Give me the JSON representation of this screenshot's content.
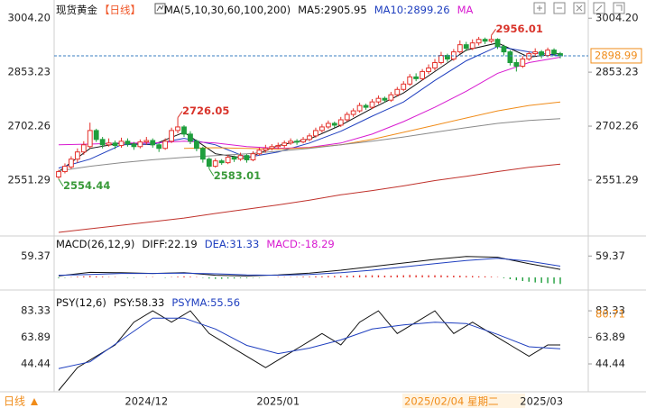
{
  "header": {
    "title": "现货黄金",
    "period": "【日线】",
    "indicator": "MA(5,10,30,60,100,200)",
    "legend": [
      "MA5:2905.95",
      "MA10:2899.26",
      "MA"
    ],
    "legend_colors": [
      "#111111",
      "#1f3fbf",
      "#d81bd0"
    ]
  },
  "chart_data": [
    {
      "type": "candlestick",
      "ylim": [
        2400,
        3040
      ],
      "yticks": [
        {
          "value": 3004.2,
          "label": "3004.20"
        },
        {
          "value": 2853.23,
          "label": "2853.23"
        },
        {
          "value": 2702.26,
          "label": "2702.26"
        },
        {
          "value": 2551.29,
          "label": "2551.29"
        }
      ],
      "up_color": "#e4312b",
      "down_color": "#1e9e3c",
      "price_line_color": "#3a7ec0",
      "crosshair_label": "2025/02/04 星期二",
      "categories": [
        null,
        null,
        null,
        null,
        null,
        null,
        null,
        null,
        null,
        null,
        null,
        null,
        null,
        null,
        "2024/12",
        null,
        null,
        null,
        null,
        null,
        null,
        null,
        null,
        null,
        null,
        null,
        null,
        null,
        null,
        null,
        null,
        null,
        null,
        null,
        null,
        "2025/01",
        null,
        null,
        null,
        null,
        null,
        null,
        null,
        null,
        null,
        null,
        null,
        null,
        null,
        null,
        null,
        null,
        null,
        null,
        null,
        null,
        null,
        null,
        null,
        null,
        null,
        null,
        null,
        null,
        null,
        null,
        null,
        null,
        null,
        null,
        null,
        null,
        null,
        null,
        null,
        null,
        null,
        "2025/03",
        null,
        null,
        null
      ],
      "candles": [
        [
          2560,
          2580,
          2554.44,
          2575
        ],
        [
          2575,
          2598,
          2570,
          2590
        ],
        [
          2588,
          2618,
          2582,
          2610
        ],
        [
          2610,
          2640,
          2600,
          2630
        ],
        [
          2630,
          2660,
          2622,
          2650
        ],
        [
          2645,
          2712,
          2640,
          2690
        ],
        [
          2690,
          2695,
          2658,
          2665
        ],
        [
          2665,
          2672,
          2640,
          2650
        ],
        [
          2650,
          2668,
          2645,
          2655
        ],
        [
          2655,
          2662,
          2638,
          2648
        ],
        [
          2648,
          2670,
          2642,
          2660
        ],
        [
          2660,
          2668,
          2645,
          2652
        ],
        [
          2652,
          2658,
          2636,
          2645
        ],
        [
          2645,
          2665,
          2640,
          2658
        ],
        [
          2658,
          2672,
          2650,
          2662
        ],
        [
          2662,
          2668,
          2642,
          2650
        ],
        [
          2650,
          2655,
          2630,
          2640
        ],
        [
          2640,
          2668,
          2636,
          2660
        ],
        [
          2660,
          2698,
          2655,
          2690
        ],
        [
          2690,
          2726.05,
          2682,
          2700
        ],
        [
          2700,
          2705,
          2672,
          2680
        ],
        [
          2680,
          2688,
          2652,
          2660
        ],
        [
          2660,
          2665,
          2632,
          2640
        ],
        [
          2640,
          2645,
          2600,
          2610
        ],
        [
          2610,
          2615,
          2583.01,
          2590
        ],
        [
          2590,
          2612,
          2586,
          2605
        ],
        [
          2605,
          2610,
          2594,
          2600
        ],
        [
          2600,
          2622,
          2596,
          2615
        ],
        [
          2615,
          2620,
          2602,
          2610
        ],
        [
          2610,
          2628,
          2605,
          2620
        ],
        [
          2620,
          2624,
          2600,
          2608
        ],
        [
          2608,
          2632,
          2604,
          2625
        ],
        [
          2625,
          2642,
          2620,
          2635
        ],
        [
          2635,
          2650,
          2628,
          2640
        ],
        [
          2640,
          2652,
          2634,
          2645
        ],
        [
          2645,
          2656,
          2638,
          2648
        ],
        [
          2648,
          2662,
          2642,
          2655
        ],
        [
          2655,
          2668,
          2650,
          2660
        ],
        [
          2660,
          2666,
          2650,
          2658
        ],
        [
          2658,
          2672,
          2654,
          2665
        ],
        [
          2665,
          2682,
          2660,
          2675
        ],
        [
          2675,
          2698,
          2670,
          2690
        ],
        [
          2690,
          2708,
          2684,
          2700
        ],
        [
          2700,
          2718,
          2695,
          2710
        ],
        [
          2710,
          2715,
          2698,
          2705
        ],
        [
          2705,
          2728,
          2700,
          2720
        ],
        [
          2720,
          2742,
          2715,
          2735
        ],
        [
          2735,
          2752,
          2728,
          2745
        ],
        [
          2745,
          2768,
          2740,
          2760
        ],
        [
          2760,
          2765,
          2748,
          2755
        ],
        [
          2755,
          2778,
          2750,
          2770
        ],
        [
          2770,
          2788,
          2764,
          2780
        ],
        [
          2780,
          2785,
          2768,
          2775
        ],
        [
          2775,
          2798,
          2770,
          2790
        ],
        [
          2790,
          2812,
          2785,
          2805
        ],
        [
          2805,
          2828,
          2800,
          2820
        ],
        [
          2820,
          2848,
          2815,
          2840
        ],
        [
          2840,
          2850,
          2828,
          2835
        ],
        [
          2835,
          2862,
          2830,
          2855
        ],
        [
          2855,
          2875,
          2848,
          2865
        ],
        [
          2865,
          2890,
          2858,
          2880
        ],
        [
          2880,
          2910,
          2875,
          2900
        ],
        [
          2900,
          2905,
          2882,
          2890
        ],
        [
          2890,
          2918,
          2885,
          2910
        ],
        [
          2910,
          2942,
          2905,
          2930
        ],
        [
          2930,
          2938,
          2912,
          2920
        ],
        [
          2920,
          2945,
          2915,
          2935
        ],
        [
          2935,
          2952,
          2928,
          2945
        ],
        [
          2945,
          2950,
          2932,
          2940
        ],
        [
          2940,
          2956.01,
          2935,
          2945
        ],
        [
          2945,
          2948,
          2918,
          2925
        ],
        [
          2925,
          2930,
          2900,
          2910
        ],
        [
          2910,
          2915,
          2872,
          2880
        ],
        [
          2880,
          2890,
          2855,
          2870
        ],
        [
          2870,
          2898,
          2865,
          2890
        ],
        [
          2890,
          2912,
          2885,
          2905
        ],
        [
          2905,
          2920,
          2898,
          2910
        ],
        [
          2910,
          2915,
          2892,
          2900
        ],
        [
          2900,
          2922,
          2895,
          2915
        ],
        [
          2915,
          2920,
          2898,
          2905
        ],
        [
          2905,
          2910,
          2892,
          2898.99
        ]
      ],
      "annotations": [
        {
          "x": 19,
          "y": 2726.05,
          "position": "above",
          "color": "#d9342b"
        },
        {
          "x": 24,
          "y": 2583.01,
          "position": "below",
          "color": "#3a9a3a"
        },
        {
          "x": 0,
          "y": 2554.44,
          "position": "below",
          "color": "#3a9a3a"
        },
        {
          "x": 69,
          "y": 2956.01,
          "position": "above",
          "color": "#d9342b"
        }
      ],
      "series": [
        {
          "name": "MA5",
          "color": "#111111",
          "x": [
            0,
            5,
            10,
            15,
            20,
            25,
            30,
            35,
            40,
            45,
            50,
            55,
            60,
            65,
            70,
            75,
            80
          ],
          "values": [
            2575,
            2640,
            2655,
            2650,
            2685,
            2625,
            2612,
            2648,
            2666,
            2705,
            2752,
            2795,
            2855,
            2915,
            2935,
            2895,
            2905.95
          ]
        },
        {
          "name": "MA10",
          "color": "#1f3fbf",
          "x": [
            0,
            5,
            10,
            15,
            20,
            25,
            30,
            35,
            40,
            45,
            50,
            55,
            60,
            65,
            70,
            75,
            80
          ],
          "values": [
            2585,
            2610,
            2650,
            2652,
            2668,
            2650,
            2615,
            2630,
            2655,
            2688,
            2730,
            2770,
            2830,
            2885,
            2925,
            2910,
            2899.26
          ]
        },
        {
          "name": "MA30",
          "color": "#d81bd0",
          "x": [
            0,
            5,
            10,
            15,
            20,
            25,
            30,
            35,
            40,
            45,
            50,
            55,
            60,
            65,
            70,
            75,
            80
          ],
          "values": [
            2650,
            2652,
            2655,
            2655,
            2660,
            2655,
            2645,
            2640,
            2643,
            2655,
            2680,
            2715,
            2755,
            2800,
            2850,
            2880,
            2895
          ]
        },
        {
          "name": "MA60",
          "color": "#f08c1a",
          "x": [
            20,
            25,
            30,
            35,
            40,
            45,
            50,
            55,
            60,
            65,
            70,
            75,
            80
          ],
          "values": [
            2640,
            2642,
            2640,
            2638,
            2642,
            2650,
            2665,
            2685,
            2705,
            2725,
            2745,
            2760,
            2770
          ]
        },
        {
          "name": "MA100",
          "color": "#8a8a8a",
          "x": [
            0,
            5,
            10,
            15,
            20,
            25,
            30,
            35,
            40,
            45,
            50,
            55,
            60,
            65,
            70,
            75,
            80
          ],
          "values": [
            2577,
            2590,
            2600,
            2608,
            2615,
            2620,
            2625,
            2632,
            2640,
            2650,
            2660,
            2672,
            2685,
            2698,
            2710,
            2718,
            2723
          ]
        },
        {
          "name": "MA200",
          "color": "#c0322c",
          "x": [
            0,
            5,
            10,
            15,
            20,
            25,
            30,
            35,
            40,
            45,
            50,
            55,
            60,
            65,
            70,
            75,
            80
          ],
          "values": [
            2405,
            2415,
            2425,
            2435,
            2445,
            2458,
            2470,
            2482,
            2495,
            2510,
            2522,
            2535,
            2550,
            2562,
            2575,
            2587,
            2596
          ]
        }
      ]
    },
    {
      "type": "macd",
      "title": "MACD(26,12,9)",
      "legend": [
        "DIFF:22.19",
        "DEA:31.33",
        "MACD:-18.29"
      ],
      "legend_colors": [
        "#111111",
        "#1f3fbf",
        "#d81bd0"
      ],
      "ylim": [
        -30,
        100
      ],
      "yticks": [
        59.37
      ],
      "up_color": "#e4312b",
      "down_color": "#1e9e3c",
      "histogram": [
        -2,
        -1,
        1,
        2,
        3,
        4,
        3,
        2,
        1,
        1,
        0,
        -1,
        -1,
        0,
        1,
        1,
        0,
        -1,
        1,
        2,
        3,
        2,
        1,
        -1,
        -3,
        -4,
        -4,
        -3,
        -3,
        -2,
        -2,
        -1,
        -1,
        0,
        0,
        1,
        1,
        1,
        1,
        2,
        2,
        3,
        3,
        4,
        4,
        4,
        5,
        5,
        6,
        6,
        6,
        6,
        5,
        5,
        6,
        6,
        7,
        6,
        6,
        6,
        6,
        6,
        5,
        5,
        5,
        4,
        4,
        3,
        3,
        2,
        1,
        -2,
        -5,
        -8,
        -10,
        -12,
        -14,
        -15,
        -16,
        -17,
        -18.29
      ],
      "series": [
        {
          "name": "DIFF",
          "color": "#111111",
          "x": [
            0,
            5,
            10,
            15,
            20,
            25,
            30,
            35,
            40,
            45,
            50,
            55,
            60,
            65,
            70,
            75,
            80
          ],
          "values": [
            4,
            14,
            13,
            11,
            13,
            6,
            4,
            7,
            12,
            20,
            30,
            40,
            50,
            58,
            56,
            38,
            22.19
          ]
        },
        {
          "name": "DEA",
          "color": "#1f3fbf",
          "x": [
            0,
            5,
            10,
            15,
            20,
            25,
            30,
            35,
            40,
            45,
            50,
            55,
            60,
            65,
            70,
            75,
            80
          ],
          "values": [
            6,
            8,
            11,
            11,
            12,
            10,
            7,
            6,
            8,
            13,
            20,
            29,
            38,
            47,
            53,
            45,
            31.33
          ]
        }
      ]
    },
    {
      "type": "psy",
      "title": "PSY(12,6)",
      "legend": [
        "PSY:58.33",
        "PSYMA:55.56"
      ],
      "legend_colors": [
        "#111111",
        "#1f3fbf"
      ],
      "ylim": [
        24,
        88
      ],
      "yticks": [
        83.33,
        63.89,
        44.44
      ],
      "marker": 80.71,
      "marker_color": "#f08c1a",
      "series": [
        {
          "name": "PSY",
          "color": "#111111",
          "x": [
            0,
            3,
            6,
            9,
            12,
            15,
            18,
            21,
            24,
            27,
            30,
            33,
            36,
            39,
            42,
            45,
            48,
            51,
            54,
            57,
            60,
            63,
            66,
            69,
            72,
            75,
            78,
            80
          ],
          "values": [
            25,
            41.67,
            50,
            58.33,
            75,
            83.33,
            75,
            83.33,
            66.67,
            58.33,
            50,
            41.67,
            50,
            58.33,
            66.67,
            58.33,
            75,
            83.33,
            66.67,
            75,
            83.33,
            66.67,
            75,
            66.67,
            58.33,
            50,
            58.33,
            58.33
          ]
        },
        {
          "name": "PSYMA",
          "color": "#1f3fbf",
          "x": [
            0,
            5,
            10,
            15,
            20,
            25,
            30,
            35,
            40,
            45,
            50,
            55,
            60,
            65,
            70,
            75,
            80
          ],
          "values": [
            41,
            46,
            62,
            78,
            78,
            70,
            58,
            52,
            56,
            62,
            70,
            73,
            75,
            74,
            66,
            57,
            55.56
          ]
        }
      ]
    }
  ],
  "footer": {
    "period_button": "日线"
  }
}
